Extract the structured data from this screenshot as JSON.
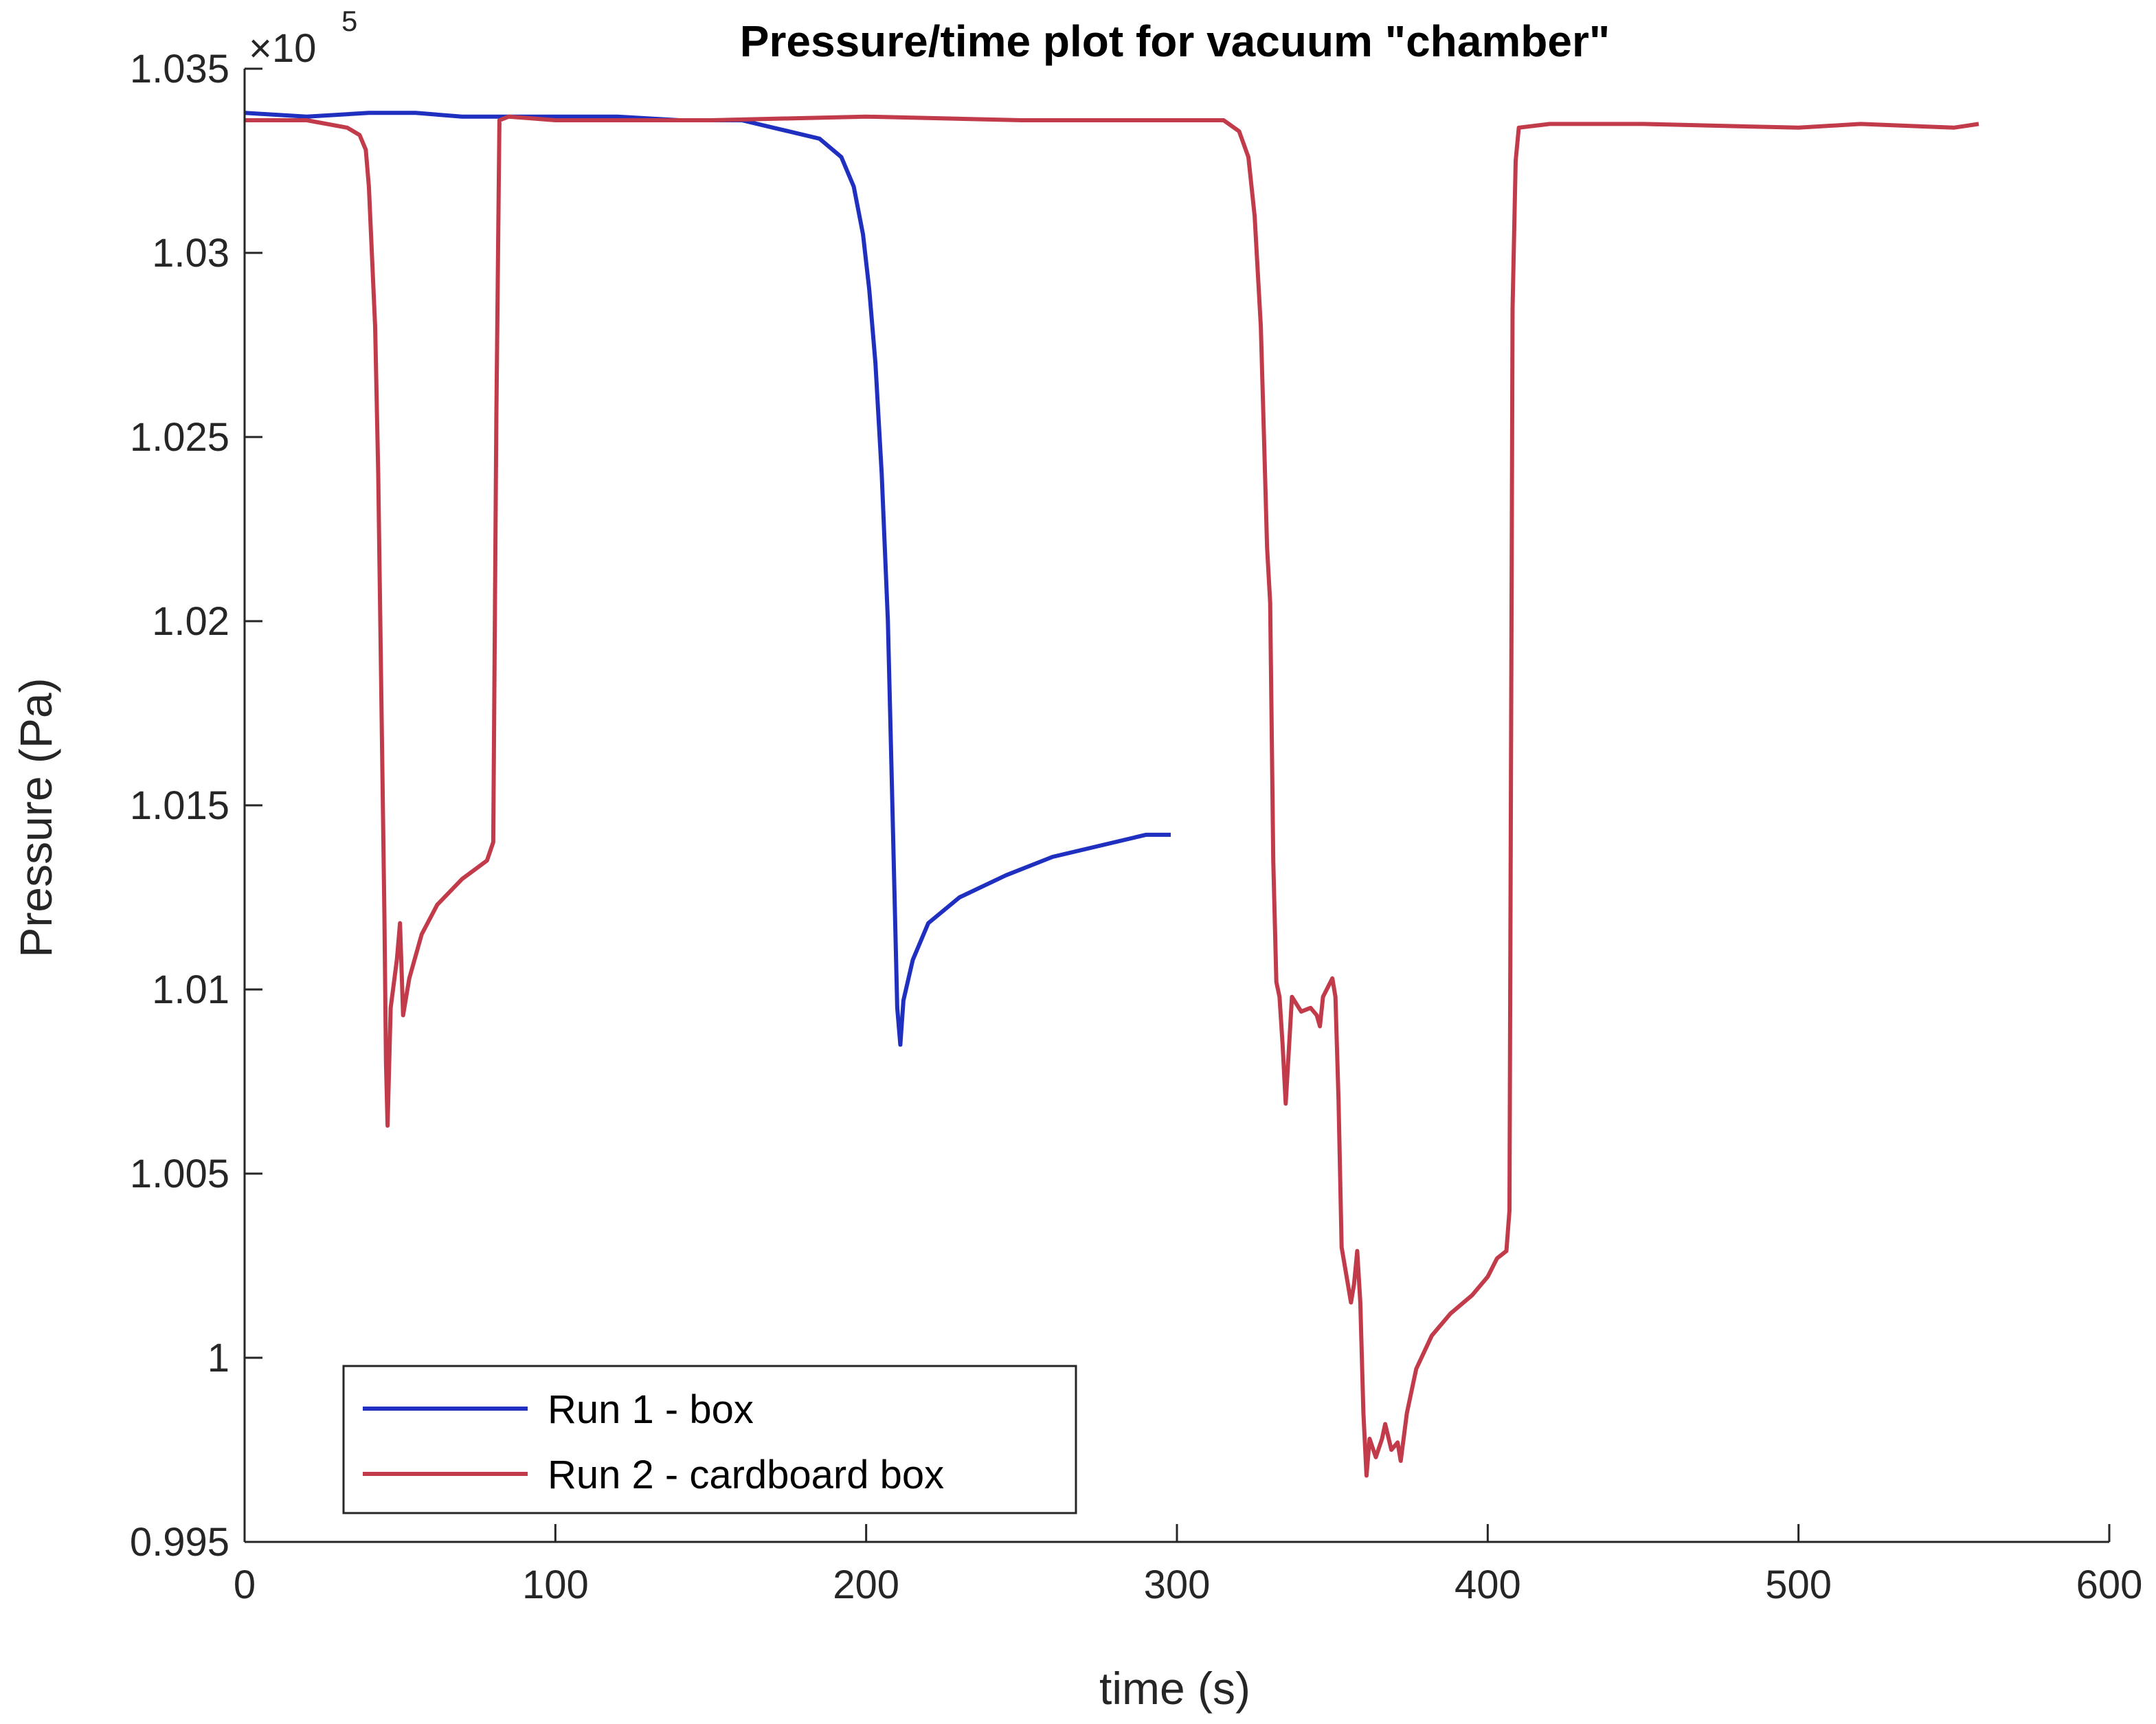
{
  "chart_data": {
    "type": "line",
    "title": "Pressure/time plot for vacuum \"chamber\"",
    "xlabel": "time (s)",
    "ylabel": "Pressure (Pa)",
    "y_multiplier": {
      "base": "×10",
      "exponent": "5"
    },
    "xlim": [
      0,
      600
    ],
    "ylim": [
      0.995,
      1.035
    ],
    "xticks": [
      0,
      100,
      200,
      300,
      400,
      500,
      600
    ],
    "xtick_labels": [
      "0",
      "100",
      "200",
      "300",
      "400",
      "500",
      "600"
    ],
    "yticks": [
      0.995,
      1.0,
      1.005,
      1.01,
      1.015,
      1.02,
      1.025,
      1.03,
      1.035
    ],
    "ytick_labels": [
      "0.995",
      "1",
      "1.005",
      "1.01",
      "1.015",
      "1.02",
      "1.025",
      "1.03",
      "1.035"
    ],
    "grid": false,
    "legend_position": "bottom-left",
    "series": [
      {
        "name": "Run 1 - box",
        "color": "#1f2fbf",
        "points": [
          [
            0,
            1.0338
          ],
          [
            20,
            1.0337
          ],
          [
            40,
            1.0338
          ],
          [
            55,
            1.0338
          ],
          [
            70,
            1.0337
          ],
          [
            80,
            1.0337
          ],
          [
            100,
            1.0337
          ],
          [
            120,
            1.0337
          ],
          [
            140,
            1.0336
          ],
          [
            160,
            1.0336
          ],
          [
            175,
            1.0333
          ],
          [
            185,
            1.0331
          ],
          [
            192,
            1.0326
          ],
          [
            196,
            1.0318
          ],
          [
            199,
            1.0305
          ],
          [
            201,
            1.029
          ],
          [
            203,
            1.027
          ],
          [
            205,
            1.024
          ],
          [
            207,
            1.02
          ],
          [
            208,
            1.0165
          ],
          [
            209,
            1.013
          ],
          [
            210,
            1.0095
          ],
          [
            211,
            1.0085
          ],
          [
            212,
            1.0097
          ],
          [
            215,
            1.0108
          ],
          [
            220,
            1.0118
          ],
          [
            230,
            1.0125
          ],
          [
            245,
            1.0131
          ],
          [
            260,
            1.0136
          ],
          [
            275,
            1.0139
          ],
          [
            290,
            1.0142
          ],
          [
            298,
            1.0142
          ]
        ]
      },
      {
        "name": "Run 2 - cardboard box",
        "color": "#c23b4a",
        "points": [
          [
            0,
            1.0336
          ],
          [
            20,
            1.0336
          ],
          [
            33,
            1.0334
          ],
          [
            37,
            1.0332
          ],
          [
            39,
            1.0328
          ],
          [
            40,
            1.0318
          ],
          [
            42,
            1.028
          ],
          [
            43,
            1.024
          ],
          [
            44,
            1.018
          ],
          [
            45,
            1.012
          ],
          [
            45.5,
            1.008
          ],
          [
            46,
            1.0063
          ],
          [
            47,
            1.0095
          ],
          [
            49,
            1.0108
          ],
          [
            50,
            1.0118
          ],
          [
            51,
            1.0093
          ],
          [
            53,
            1.0103
          ],
          [
            57,
            1.0115
          ],
          [
            62,
            1.0123
          ],
          [
            70,
            1.013
          ],
          [
            78,
            1.0135
          ],
          [
            80,
            1.014
          ],
          [
            81,
            1.0255
          ],
          [
            82,
            1.0336
          ],
          [
            85,
            1.0337
          ],
          [
            100,
            1.0336
          ],
          [
            150,
            1.0336
          ],
          [
            200,
            1.0337
          ],
          [
            250,
            1.0336
          ],
          [
            300,
            1.0336
          ],
          [
            315,
            1.0336
          ],
          [
            320,
            1.0333
          ],
          [
            323,
            1.0326
          ],
          [
            325,
            1.031
          ],
          [
            327,
            1.028
          ],
          [
            328,
            1.025
          ],
          [
            329,
            1.022
          ],
          [
            330,
            1.0205
          ],
          [
            331,
            1.0135
          ],
          [
            332,
            1.0102
          ],
          [
            333,
            1.0098
          ],
          [
            334,
            1.0085
          ],
          [
            335,
            1.0069
          ],
          [
            337,
            1.0098
          ],
          [
            340,
            1.0094
          ],
          [
            343,
            1.0095
          ],
          [
            345,
            1.0093
          ],
          [
            346,
            1.009
          ],
          [
            347,
            1.0098
          ],
          [
            350,
            1.0103
          ],
          [
            351,
            1.0098
          ],
          [
            352,
            1.007
          ],
          [
            353,
            1.003
          ],
          [
            355,
            1.002
          ],
          [
            356,
            1.0015
          ],
          [
            357,
            1.002
          ],
          [
            358,
            1.0029
          ],
          [
            359,
            1.0015
          ],
          [
            360,
            0.9985
          ],
          [
            361,
            0.9968
          ],
          [
            362,
            0.9978
          ],
          [
            364,
            0.9973
          ],
          [
            366,
            0.9978
          ],
          [
            367,
            0.9982
          ],
          [
            369,
            0.9975
          ],
          [
            371,
            0.9977
          ],
          [
            372,
            0.9972
          ],
          [
            374,
            0.9985
          ],
          [
            377,
            0.9997
          ],
          [
            382,
            1.0006
          ],
          [
            388,
            1.0012
          ],
          [
            395,
            1.0017
          ],
          [
            400,
            1.0022
          ],
          [
            403,
            1.0027
          ],
          [
            406,
            1.0029
          ],
          [
            407,
            1.004
          ],
          [
            408,
            1.0285
          ],
          [
            409,
            1.0325
          ],
          [
            410,
            1.0334
          ],
          [
            420,
            1.0335
          ],
          [
            450,
            1.0335
          ],
          [
            500,
            1.0334
          ],
          [
            520,
            1.0335
          ],
          [
            550,
            1.0334
          ],
          [
            558,
            1.0335
          ]
        ]
      }
    ]
  }
}
